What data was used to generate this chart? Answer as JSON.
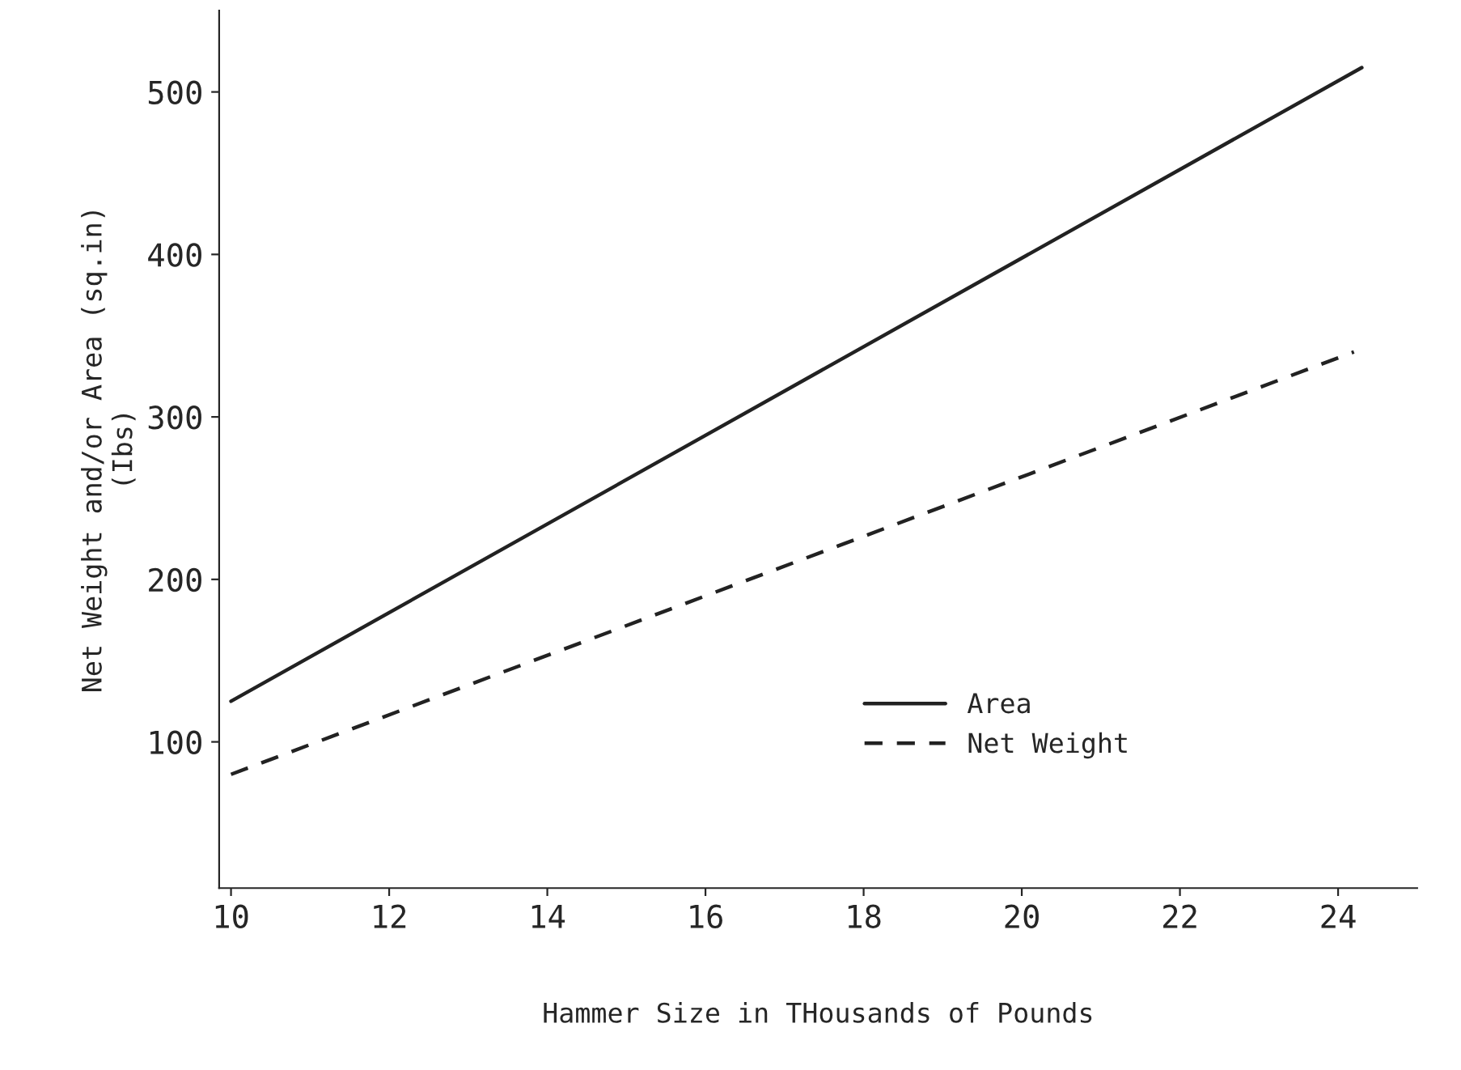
{
  "chart_data": {
    "type": "line",
    "xlabel": "Hammer Size in THousands of Pounds",
    "ylabel": "Net Weight and/or Area (sq.in)\n(Ibs)",
    "series": [
      {
        "name": "Area",
        "color": "#222222",
        "line_style": "solid",
        "x": [
          10,
          24.3
        ],
        "values": [
          125,
          515
        ]
      },
      {
        "name": "Net Weight",
        "color": "#222222",
        "line_style": "dashed",
        "x": [
          10,
          24.2
        ],
        "values": [
          80,
          340
        ]
      }
    ],
    "xlim": [
      9.85,
      25
    ],
    "ylim": [
      10,
      550
    ],
    "xticks": [
      10,
      12,
      14,
      16,
      18,
      20,
      22,
      24
    ],
    "yticks": [
      100,
      200,
      300,
      400,
      500
    ],
    "grid": false,
    "legend": "lower right",
    "marker": "none"
  }
}
